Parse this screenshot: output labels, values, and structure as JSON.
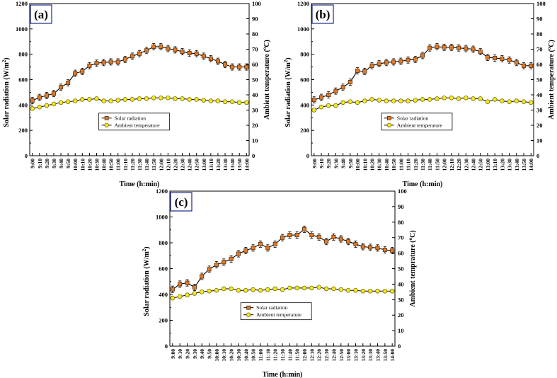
{
  "colors": {
    "solar_fill": "#e07b2a",
    "solar_line": "#5a2a00",
    "temp_fill": "#f2ea1e",
    "temp_line": "#7a6a00",
    "error_bar": "#000000"
  },
  "chart_data": [
    {
      "panel_label": "(a)",
      "type": "line",
      "xlabel": "Time (h:min)",
      "ylabel_left": "Solar radiation (W/m",
      "ylabel_left_sup": "2",
      "ylabel_left_end": ")",
      "ylabel_right": "Ambient temperature (",
      "ylabel_right_sup": "o",
      "ylabel_right_end": "C)",
      "x": [
        "9:00",
        "9:10",
        "9:20",
        "9:30",
        "9:40",
        "9:50",
        "10:00",
        "10:10",
        "10:20",
        "10:30",
        "10:40",
        "10:50",
        "11:00",
        "11:10",
        "11:20",
        "11:30",
        "11:40",
        "11:50",
        "12:00",
        "12:10",
        "12:20",
        "12:30",
        "12:40",
        "12:50",
        "13:00",
        "13:10",
        "13:20",
        "13:30",
        "13:40",
        "13:50",
        "14:00"
      ],
      "ylim_left": [
        0,
        1200
      ],
      "yticks_left": [
        0,
        200,
        400,
        600,
        800,
        1000,
        1200
      ],
      "ylim_right": [
        0,
        100
      ],
      "yticks_right": [
        0,
        10,
        20,
        30,
        40,
        50,
        60,
        70,
        80,
        90,
        100
      ],
      "legend": [
        "Solar radiation",
        "Ambient temperature"
      ],
      "series": [
        {
          "name": "Solar radiation",
          "axis": "left",
          "values": [
            435,
            460,
            475,
            490,
            540,
            575,
            650,
            665,
            710,
            730,
            735,
            740,
            740,
            760,
            785,
            805,
            830,
            860,
            860,
            845,
            835,
            820,
            810,
            805,
            785,
            765,
            745,
            720,
            700,
            700,
            700
          ]
        },
        {
          "name": "Ambient temperature",
          "axis": "right",
          "values": [
            31,
            32,
            33,
            34,
            35,
            35.5,
            36,
            37,
            37,
            37.5,
            36,
            36,
            36.5,
            37,
            37,
            37.5,
            37.5,
            38,
            38,
            38,
            37.5,
            37.5,
            37,
            37,
            36.5,
            36,
            36,
            35.5,
            35.5,
            35,
            35
          ]
        }
      ]
    },
    {
      "panel_label": "(b)",
      "type": "line",
      "xlabel": "Time (h:min)",
      "ylabel_left": "Solar radiation (W/m",
      "ylabel_left_sup": "2",
      "ylabel_left_end": ")",
      "ylabel_right": "Ambient temperature (",
      "ylabel_right_sup": "o",
      "ylabel_right_end": "C)",
      "x": [
        "9:00",
        "9:10",
        "9:20",
        "9:30",
        "9:40",
        "9:50",
        "10:00",
        "10:10",
        "10:20",
        "10:30",
        "10:40",
        "10:50",
        "11:00",
        "11:10",
        "11:20",
        "11:30",
        "11:40",
        "11:50",
        "12:00",
        "12:10",
        "12:20",
        "12:30",
        "12:40",
        "12:50",
        "13:00",
        "13:10",
        "13:20",
        "13:30",
        "13:40",
        "13:50",
        "14:00"
      ],
      "ylim_left": [
        0,
        1200
      ],
      "yticks_left": [
        0,
        200,
        400,
        600,
        800,
        1000,
        1200
      ],
      "ylim_right": [
        0,
        100
      ],
      "yticks_right": [
        0,
        10,
        20,
        30,
        40,
        50,
        60,
        70,
        80,
        90,
        100
      ],
      "legend": [
        "Solar radiation",
        "Ambient temperature"
      ],
      "series": [
        {
          "name": "Solar radiation",
          "axis": "left",
          "values": [
            440,
            460,
            480,
            510,
            540,
            580,
            670,
            665,
            710,
            725,
            735,
            740,
            745,
            755,
            760,
            790,
            850,
            860,
            855,
            855,
            850,
            845,
            840,
            820,
            775,
            770,
            765,
            755,
            735,
            710,
            710
          ]
        },
        {
          "name": "Ambient temperature",
          "axis": "right",
          "values": [
            30,
            32,
            33,
            33,
            35,
            35.5,
            35,
            36,
            37,
            36.5,
            36,
            36,
            36,
            36,
            36.5,
            37,
            37,
            37.5,
            38,
            38,
            37.5,
            38,
            37.5,
            37.5,
            35.5,
            37,
            36,
            35.5,
            36,
            35.5,
            35
          ]
        }
      ]
    },
    {
      "panel_label": "(c)",
      "type": "line",
      "xlabel": "Time (h:min)",
      "ylabel_left": "Solar radiation (W/m",
      "ylabel_left_sup": "2",
      "ylabel_left_end": ")",
      "ylabel_right": "Ambient temprature (",
      "ylabel_right_sup": "o",
      "ylabel_right_end": "C)",
      "x": [
        "9:00",
        "9:10",
        "9:20",
        "9:30",
        "9:40",
        "9:50",
        "10:00",
        "10:10",
        "10:20",
        "10:30",
        "10:40",
        "10:50",
        "11:00",
        "11:10",
        "11:20",
        "11:30",
        "11:40",
        "11:50",
        "12:00",
        "12:10",
        "12:20",
        "12:30",
        "12:40",
        "12:50",
        "13:00",
        "13:10",
        "13:20",
        "13:30",
        "13:40",
        "13:50",
        "14:00"
      ],
      "ylim_left": [
        0,
        1200
      ],
      "yticks_left": [
        0,
        200,
        400,
        600,
        800,
        1000,
        1200
      ],
      "ylim_right": [
        0,
        100
      ],
      "yticks_right": [
        0,
        10,
        20,
        30,
        40,
        50,
        60,
        70,
        80,
        90,
        100
      ],
      "legend": [
        "Solar radiation",
        "Ambient temperature"
      ],
      "series": [
        {
          "name": "Solar radiation",
          "axis": "left",
          "values": [
            440,
            480,
            490,
            455,
            540,
            595,
            630,
            650,
            675,
            715,
            740,
            760,
            790,
            760,
            790,
            840,
            860,
            860,
            905,
            860,
            845,
            810,
            845,
            830,
            810,
            790,
            770,
            765,
            760,
            745,
            740
          ]
        },
        {
          "name": "Ambient temperature",
          "axis": "right",
          "values": [
            31,
            32,
            33,
            34,
            35,
            35.5,
            36,
            37,
            37,
            36,
            36,
            36.5,
            36,
            36.5,
            37,
            36.5,
            37.5,
            37.5,
            37.5,
            37.5,
            38,
            37,
            37,
            36.5,
            36,
            36,
            35.5,
            35.5,
            35.5,
            35.5,
            35.5
          ]
        }
      ]
    }
  ]
}
